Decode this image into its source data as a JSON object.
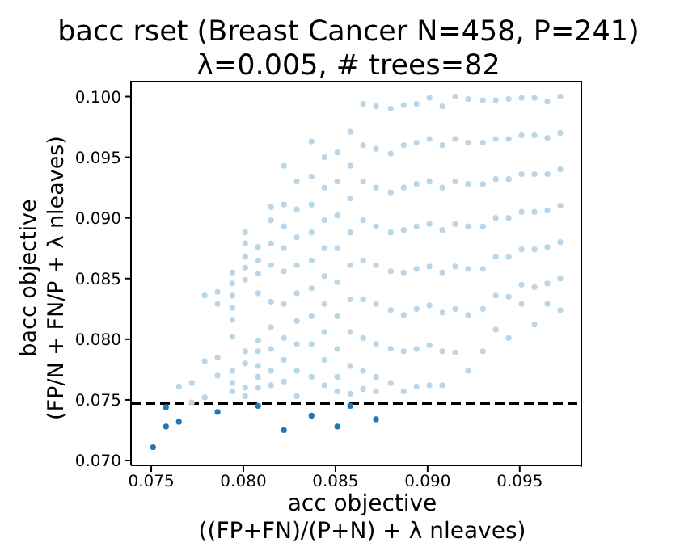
{
  "chart_data": {
    "type": "scatter",
    "title": "bacc rset (Breast Cancer N=458, P=241)",
    "subtitle": "λ=0.005, # trees=82",
    "xlabel": "acc objective\n((FP+FN)/(P+N) + λ nleaves)",
    "ylabel": "bacc objective\n(FP/N + FN/P + λ nleaves)",
    "xlim": [
      0.0739,
      0.0983
    ],
    "ylim": [
      0.0696,
      0.1013
    ],
    "xticks": [
      {
        "value": 0.075,
        "label": "0.075"
      },
      {
        "value": 0.08,
        "label": "0.080"
      },
      {
        "value": 0.085,
        "label": "0.085"
      },
      {
        "value": 0.09,
        "label": "0.090"
      },
      {
        "value": 0.095,
        "label": "0.095"
      }
    ],
    "yticks": [
      {
        "value": 0.07,
        "label": "0.070"
      },
      {
        "value": 0.075,
        "label": "0.075"
      },
      {
        "value": 0.08,
        "label": "0.080"
      },
      {
        "value": 0.085,
        "label": "0.085"
      },
      {
        "value": 0.09,
        "label": "0.090"
      },
      {
        "value": 0.095,
        "label": "0.095"
      },
      {
        "value": 0.1,
        "label": "0.100"
      }
    ],
    "marker": "circle",
    "series": [
      {
        "color": "#bcd6e8",
        "x": [
          0.0765,
          0.0772,
          0.0772,
          0.0779,
          0.0779,
          0.0779,
          0.0786,
          0.0786,
          0.0786,
          0.0786,
          0.0794,
          0.0794,
          0.0794,
          0.0794,
          0.0794,
          0.0794,
          0.0794,
          0.0794,
          0.0794,
          0.0801,
          0.0801,
          0.0801,
          0.0801,
          0.0801,
          0.0801,
          0.0801,
          0.0801,
          0.0801,
          0.0808,
          0.0808,
          0.0808,
          0.0808,
          0.0808,
          0.0808,
          0.0808,
          0.0808,
          0.0808,
          0.0815,
          0.0815,
          0.0815,
          0.0815,
          0.0815,
          0.0815,
          0.0815,
          0.0815,
          0.0815,
          0.0822,
          0.0822,
          0.0822,
          0.0822,
          0.0822,
          0.0822,
          0.0822,
          0.0822,
          0.0822,
          0.0829,
          0.0829,
          0.0829,
          0.0829,
          0.0829,
          0.0829,
          0.0829,
          0.0829,
          0.0829,
          0.0837,
          0.0837,
          0.0837,
          0.0837,
          0.0837,
          0.0837,
          0.0837,
          0.0837,
          0.0837,
          0.0844,
          0.0844,
          0.0844,
          0.0844,
          0.0844,
          0.0844,
          0.0844,
          0.0844,
          0.0844,
          0.0851,
          0.0851,
          0.0851,
          0.0851,
          0.0851,
          0.0851,
          0.0851,
          0.0851,
          0.0851,
          0.0858,
          0.0858,
          0.0858,
          0.0858,
          0.0858,
          0.0858,
          0.0858,
          0.0858,
          0.0858,
          0.0865,
          0.0865,
          0.0865,
          0.0865,
          0.0865,
          0.0865,
          0.0865,
          0.0865,
          0.0865,
          0.0872,
          0.0872,
          0.0872,
          0.0872,
          0.0872,
          0.0872,
          0.0872,
          0.0872,
          0.0872,
          0.088,
          0.088,
          0.088,
          0.088,
          0.088,
          0.088,
          0.088,
          0.088,
          0.0887,
          0.0887,
          0.0887,
          0.0887,
          0.0887,
          0.0887,
          0.0887,
          0.0887,
          0.0894,
          0.0894,
          0.0894,
          0.0894,
          0.0894,
          0.0894,
          0.0894,
          0.0894,
          0.0901,
          0.0901,
          0.0901,
          0.0901,
          0.0901,
          0.0901,
          0.0901,
          0.0901,
          0.0908,
          0.0908,
          0.0908,
          0.0908,
          0.0908,
          0.0908,
          0.0908,
          0.0908,
          0.0915,
          0.0915,
          0.0915,
          0.0915,
          0.0915,
          0.0915,
          0.0915,
          0.0922,
          0.0922,
          0.0922,
          0.0922,
          0.0922,
          0.0922,
          0.0922,
          0.093,
          0.093,
          0.093,
          0.093,
          0.093,
          0.093,
          0.093,
          0.0937,
          0.0937,
          0.0937,
          0.0937,
          0.0937,
          0.0937,
          0.0937,
          0.0944,
          0.0944,
          0.0944,
          0.0944,
          0.0944,
          0.0944,
          0.0944,
          0.0951,
          0.0951,
          0.0951,
          0.0951,
          0.0951,
          0.0951,
          0.0951,
          0.0958,
          0.0958,
          0.0958,
          0.0958,
          0.0958,
          0.0958,
          0.0958,
          0.0965,
          0.0965,
          0.0965,
          0.0965,
          0.0965,
          0.0965,
          0.0965,
          0.0972,
          0.0972,
          0.0972,
          0.0972,
          0.0972,
          0.0972,
          0.0972
        ],
        "values": [
          0.0761,
          0.0764,
          0.0748,
          0.0836,
          0.0782,
          0.0752,
          0.0839,
          0.0829,
          0.0785,
          0.077,
          0.0855,
          0.0846,
          0.0836,
          0.0826,
          0.0816,
          0.0802,
          0.0774,
          0.0764,
          0.0757,
          0.0888,
          0.0879,
          0.0868,
          0.0859,
          0.0849,
          0.079,
          0.078,
          0.076,
          0.0753,
          0.0876,
          0.0865,
          0.0854,
          0.0838,
          0.0799,
          0.079,
          0.0778,
          0.0769,
          0.076,
          0.0909,
          0.0898,
          0.0879,
          0.0861,
          0.0831,
          0.081,
          0.0792,
          0.0774,
          0.0762,
          0.0943,
          0.0911,
          0.0893,
          0.0875,
          0.0856,
          0.0829,
          0.0801,
          0.0783,
          0.0765,
          0.093,
          0.0907,
          0.0884,
          0.0861,
          0.0838,
          0.0815,
          0.0796,
          0.0774,
          0.0753,
          0.0963,
          0.0934,
          0.0911,
          0.0888,
          0.0865,
          0.0842,
          0.0819,
          0.0796,
          0.0769,
          0.095,
          0.0925,
          0.0898,
          0.0875,
          0.0852,
          0.0829,
          0.0806,
          0.0783,
          0.0762,
          0.0954,
          0.093,
          0.0902,
          0.0875,
          0.0847,
          0.0819,
          0.0792,
          0.0769,
          0.0757,
          0.0971,
          0.0943,
          0.0916,
          0.0888,
          0.0861,
          0.0833,
          0.0806,
          0.0778,
          0.0755,
          0.0994,
          0.096,
          0.093,
          0.0898,
          0.0865,
          0.0833,
          0.0801,
          0.0774,
          0.0759,
          0.0992,
          0.0957,
          0.0925,
          0.0893,
          0.0861,
          0.0829,
          0.0796,
          0.0769,
          0.0757,
          0.099,
          0.0953,
          0.0921,
          0.0888,
          0.0856,
          0.0824,
          0.0792,
          0.0764,
          0.0993,
          0.096,
          0.0925,
          0.089,
          0.0855,
          0.082,
          0.079,
          0.0757,
          0.0994,
          0.0962,
          0.0928,
          0.0893,
          0.0858,
          0.0825,
          0.0792,
          0.0761,
          0.0999,
          0.0965,
          0.093,
          0.0895,
          0.086,
          0.0828,
          0.0795,
          0.0762,
          0.0992,
          0.096,
          0.0925,
          0.089,
          0.0855,
          0.0822,
          0.079,
          0.0762,
          0.1,
          0.0965,
          0.093,
          0.0895,
          0.086,
          0.0825,
          0.0789,
          0.0998,
          0.0962,
          0.0928,
          0.0893,
          0.0858,
          0.082,
          0.0774,
          0.0997,
          0.0962,
          0.0928,
          0.0893,
          0.0858,
          0.0825,
          0.079,
          0.0997,
          0.0965,
          0.0932,
          0.09,
          0.0868,
          0.0836,
          0.0808,
          0.0998,
          0.0965,
          0.0932,
          0.09,
          0.0868,
          0.0835,
          0.0801,
          0.0999,
          0.0968,
          0.0936,
          0.0905,
          0.0874,
          0.0845,
          0.0829,
          0.0999,
          0.0968,
          0.0936,
          0.0905,
          0.0874,
          0.0843,
          0.0812,
          0.0996,
          0.0966,
          0.0936,
          0.0906,
          0.0876,
          0.0846,
          0.0829,
          0.1,
          0.097,
          0.094,
          0.091,
          0.088,
          0.085,
          0.0824
        ]
      },
      {
        "color": "#1f77b4",
        "x": [
          0.0751,
          0.0758,
          0.0758,
          0.0765,
          0.0786,
          0.0808,
          0.0822,
          0.0837,
          0.0851,
          0.0858,
          0.0872
        ],
        "values": [
          0.0711,
          0.0744,
          0.0728,
          0.0732,
          0.074,
          0.0745,
          0.0725,
          0.0737,
          0.0728,
          0.0745,
          0.0734
        ]
      }
    ],
    "ref_lines": [
      {
        "axis": "y",
        "value": 0.0747,
        "color": "#000000",
        "line_style": "dashed"
      }
    ]
  }
}
